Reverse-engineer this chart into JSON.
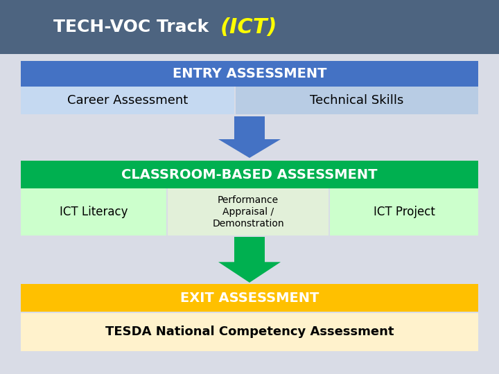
{
  "title_normal": "TECH-VOC Track ",
  "title_ict": "(ICT)",
  "header_bg": "#4d6480",
  "entry_label": "ENTRY ASSESSMENT",
  "entry_bg": "#4472c4",
  "career_label": "Career Assessment",
  "career_bg": "#c5d9f1",
  "skills_label": "Technical Skills",
  "skills_bg": "#b8cce4",
  "arrow1_color": "#4472c4",
  "classroom_label": "CLASSROOM-BASED ASSESSMENT",
  "classroom_bg": "#00b050",
  "ict_literacy_label": "ICT Literacy",
  "ict_literacy_bg": "#ccffcc",
  "performance_label": "Performance\nAppraisal /\nDemonstration",
  "performance_bg": "#e2f0d9",
  "ict_project_label": "ICT Project",
  "ict_project_bg": "#ccffcc",
  "arrow2_color": "#00b050",
  "exit_label": "EXIT ASSESSMENT",
  "exit_bg": "#ffc000",
  "tesda_label": "TESDA National Competency Assessment",
  "tesda_bg": "#fff2cc",
  "bg_mid": "#d9dce6",
  "title_color": "#ffffff",
  "ict_color": "#ffff00"
}
